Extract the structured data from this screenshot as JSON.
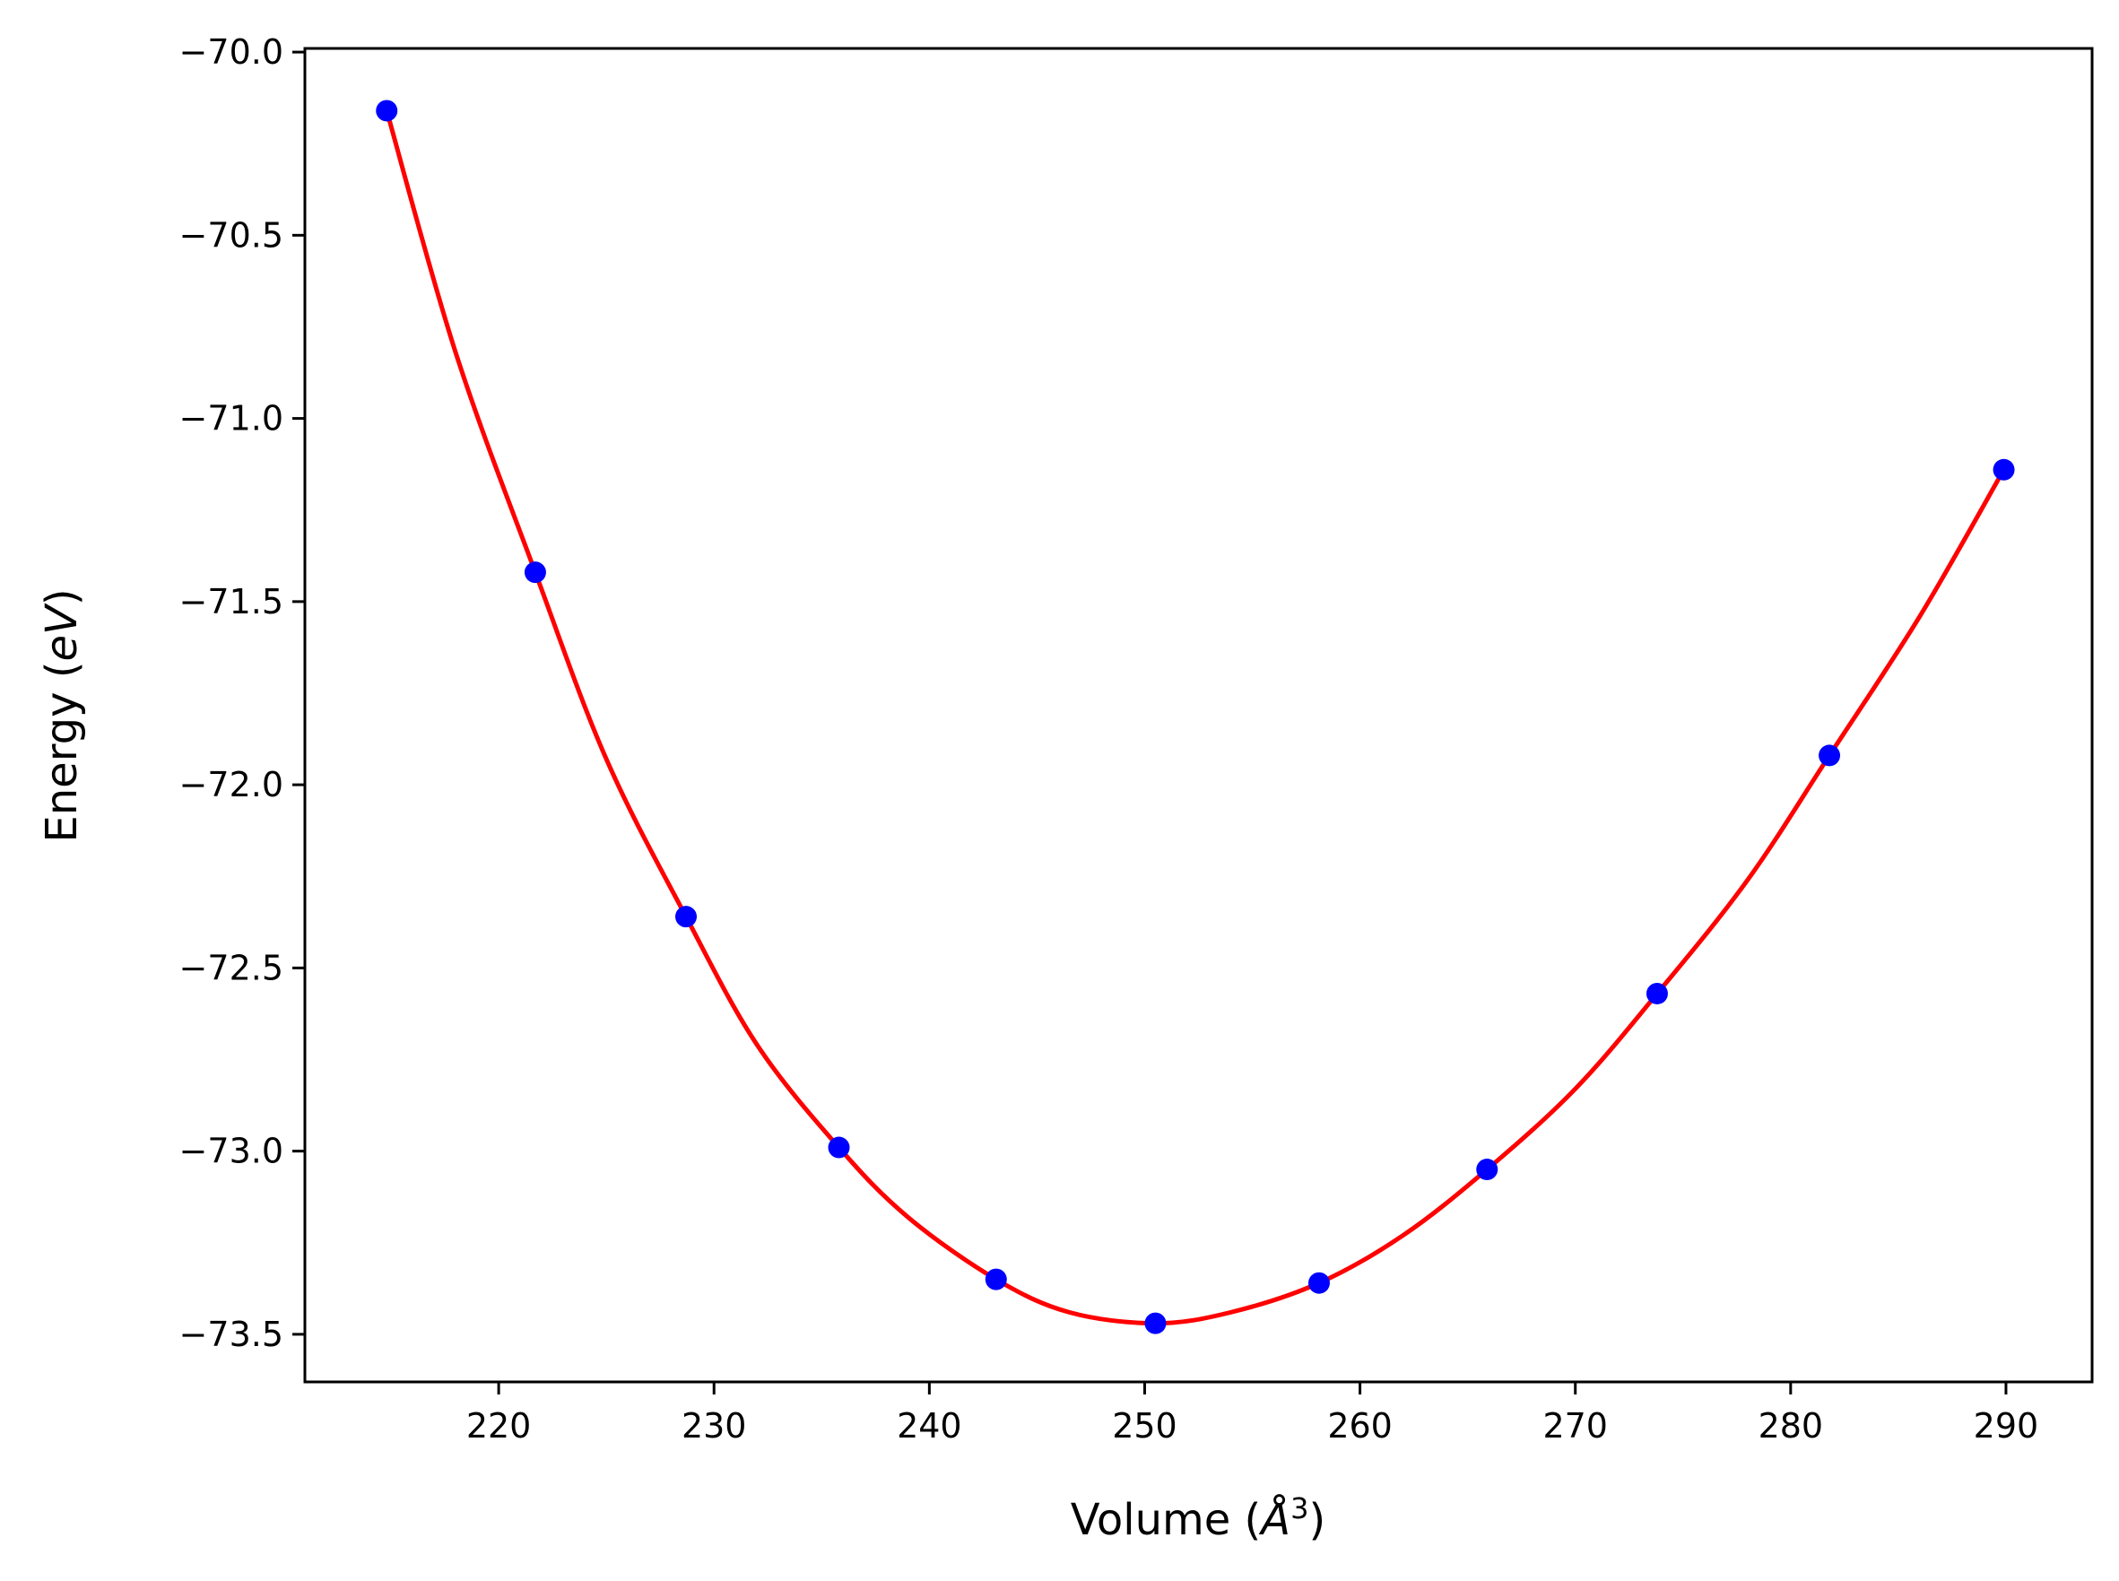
{
  "chart_data": {
    "type": "scatter",
    "title": "",
    "xlabel_prefix": "Volume (",
    "xlabel_italic": "Å",
    "xlabel_sup": "3",
    "xlabel_suffix": ")",
    "ylabel_prefix": "Energy (",
    "ylabel_italic": "eV",
    "ylabel_suffix": ")",
    "xlim": [
      211,
      294
    ],
    "ylim": [
      -73.63,
      -69.99
    ],
    "xticks": [
      220,
      230,
      240,
      250,
      260,
      270,
      280,
      290
    ],
    "xtick_labels": [
      "220",
      "230",
      "240",
      "250",
      "260",
      "270",
      "280",
      "290"
    ],
    "yticks": [
      -70.0,
      -70.5,
      -71.0,
      -71.5,
      -72.0,
      -72.5,
      -73.0,
      -73.5
    ],
    "ytick_labels": [
      "−70.0",
      "−70.5",
      "−71.0",
      "−71.5",
      "−72.0",
      "−72.5",
      "−73.0",
      "−73.5"
    ],
    "grid": false,
    "legend": "none",
    "series": [
      {
        "kind": "points",
        "color": "#0000ff",
        "x": [
          214.8,
          221.7,
          228.7,
          235.8,
          243.1,
          250.5,
          258.1,
          265.9,
          273.8,
          281.8,
          289.9
        ],
        "y": [
          -70.16,
          -71.42,
          -72.36,
          -72.99,
          -73.35,
          -73.47,
          -73.36,
          -73.05,
          -72.57,
          -71.92,
          -71.14
        ]
      },
      {
        "kind": "fit-curve",
        "color": "#ff0000",
        "x": [
          214.8,
          218.0,
          221.7,
          225.0,
          228.7,
          232.0,
          235.8,
          239.0,
          243.1,
          246.5,
          250.5,
          254.0,
          258.1,
          262.0,
          265.9,
          270.0,
          273.8,
          278.0,
          281.8,
          286.0,
          289.9
        ],
        "y": [
          -70.16,
          -70.82,
          -71.42,
          -71.93,
          -72.36,
          -72.71,
          -72.99,
          -73.18,
          -73.35,
          -73.44,
          -73.47,
          -73.44,
          -73.36,
          -73.23,
          -73.05,
          -72.83,
          -72.57,
          -72.26,
          -71.92,
          -71.54,
          -71.14
        ]
      }
    ]
  }
}
